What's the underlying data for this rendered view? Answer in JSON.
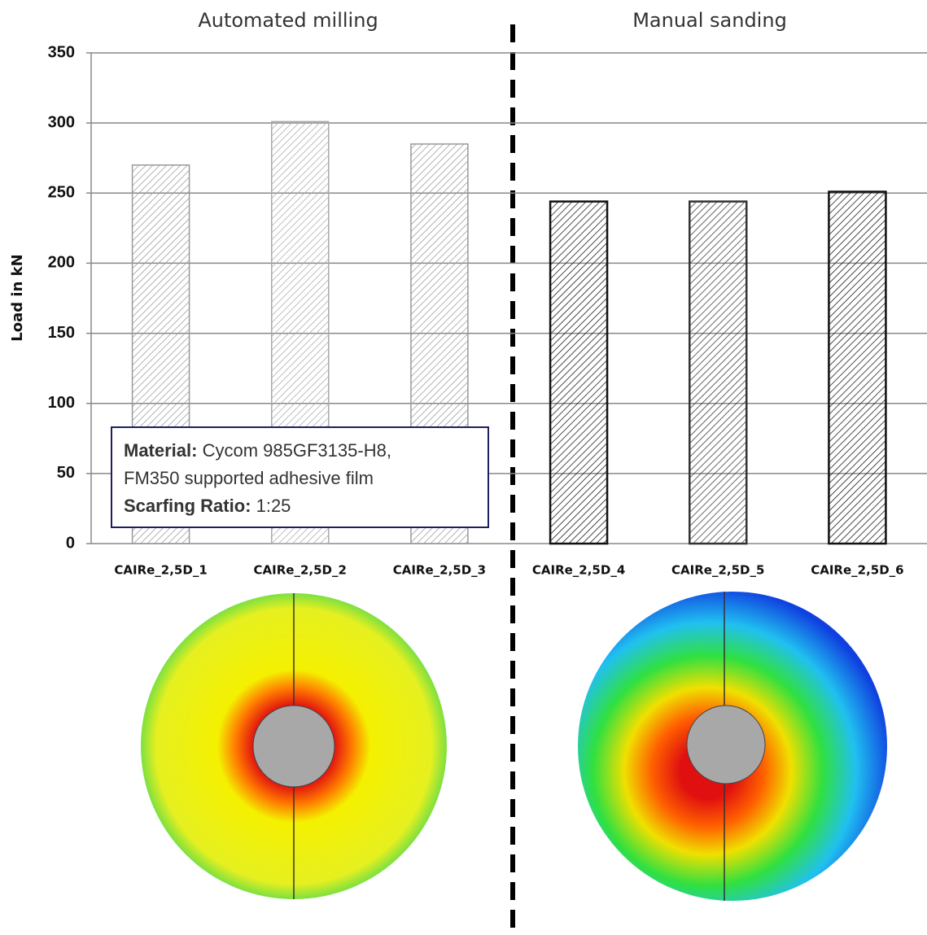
{
  "chart_data": {
    "type": "bar",
    "y_label": "Load in kN",
    "categories": [
      "CAIRe_2,5D_1",
      "CAIRe_2,5D_2",
      "CAIRe_2,5D_3",
      "CAIRe_2,5D_4",
      "CAIRe_2,5D_5",
      "CAIRe_2,5D_6"
    ],
    "values": [
      270,
      301,
      285,
      244,
      244,
      251
    ],
    "colors": [
      "#999999",
      "#aaaaaa",
      "#999999",
      "#111111",
      "#333333",
      "#111111"
    ],
    "ylim": [
      0,
      350
    ],
    "yticks": [
      0,
      50,
      100,
      150,
      200,
      250,
      300,
      350
    ],
    "grid": true,
    "group_labels": [
      "Automated milling",
      "Manual sanding"
    ],
    "annotation": {
      "material_label": "Material:",
      "material_lines": [
        "Cycom 985GF3135-H8,",
        "FM350 supported adhesive film"
      ],
      "ratio_label": "Scarfing Ratio:",
      "ratio": "1:25"
    }
  }
}
